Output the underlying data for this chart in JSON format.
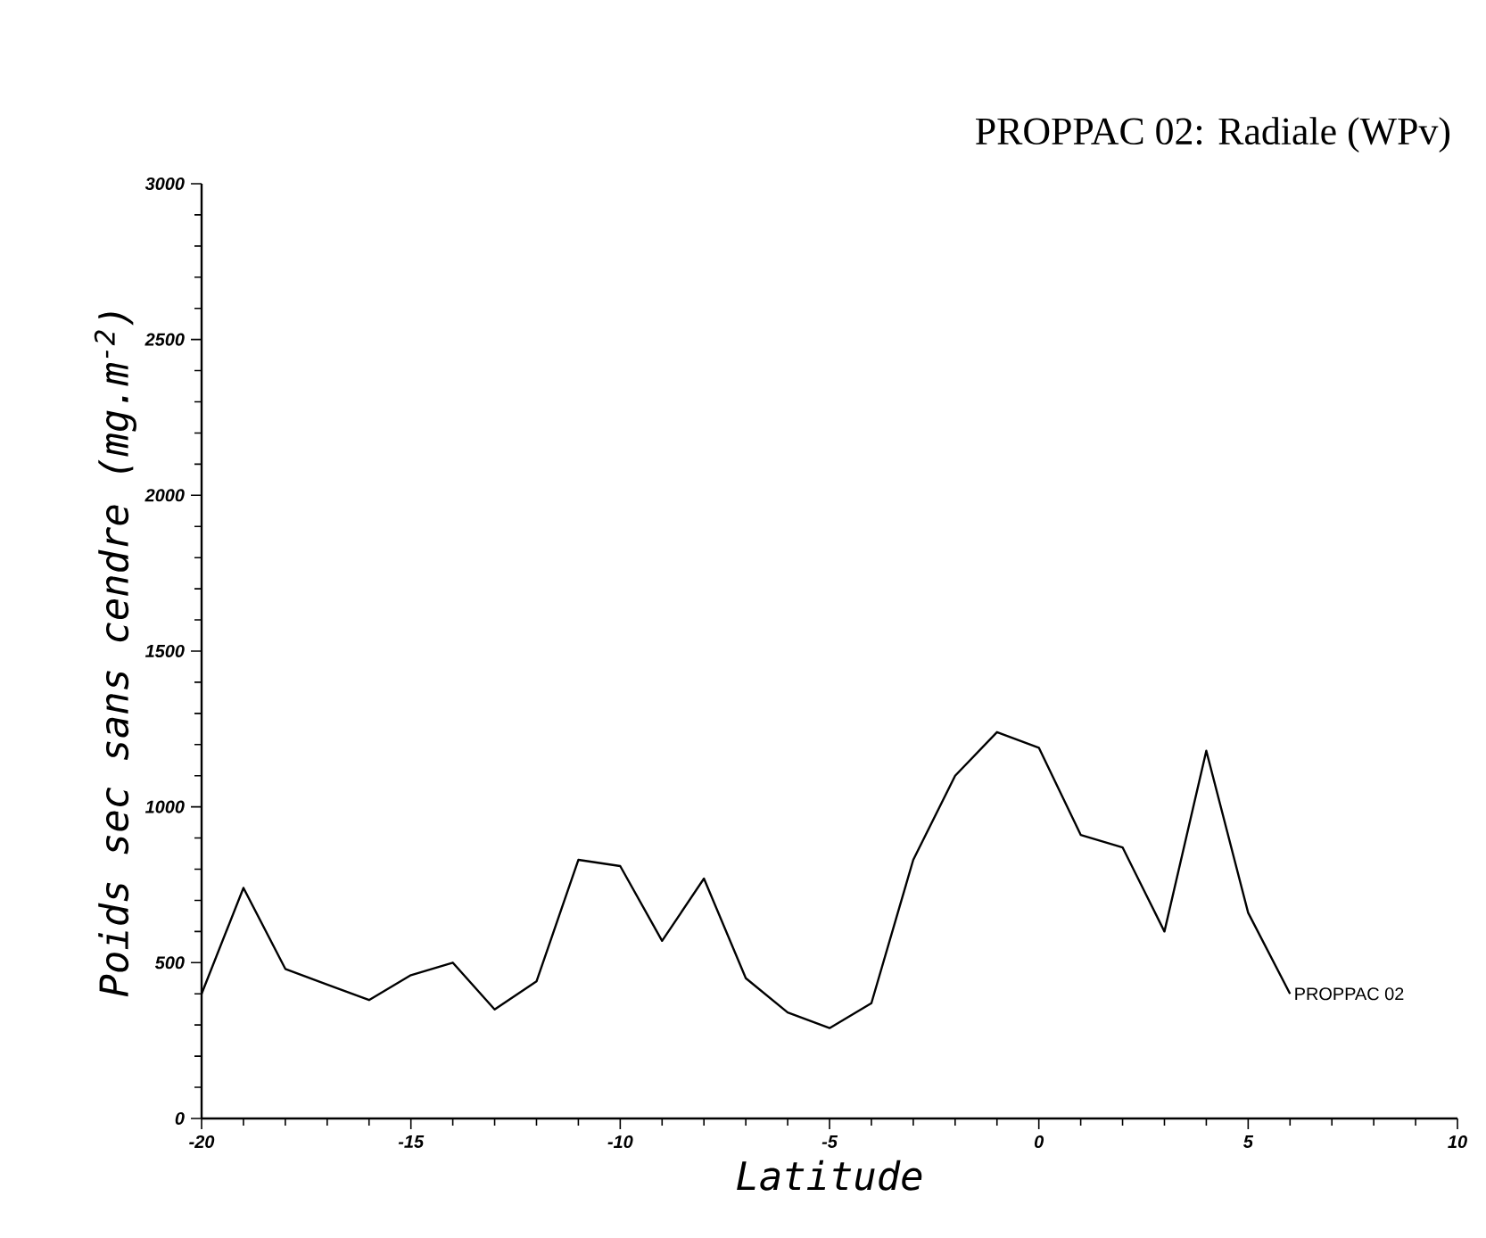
{
  "chart_data": {
    "type": "line",
    "title": "PROPPAC 02: Radiale (WPv)",
    "xlabel": "Latitude",
    "ylabel": "Poids sec sans cendre (mg.m$^{-2}$)",
    "x": [
      -20,
      -19,
      -18,
      -17,
      -16,
      -15,
      -14,
      -13,
      -12,
      -11,
      -10,
      -9,
      -8,
      -7,
      -6,
      -5,
      -4,
      -3,
      -2,
      -1,
      0,
      1,
      2,
      3,
      4,
      5,
      6
    ],
    "series": [
      {
        "name": "PROPPAC 02",
        "color": "#000000",
        "values": [
          400,
          740,
          480,
          430,
          380,
          460,
          500,
          350,
          440,
          830,
          810,
          570,
          770,
          450,
          340,
          290,
          370,
          830,
          1100,
          1240,
          1190,
          910,
          870,
          600,
          1180,
          660,
          400
        ]
      }
    ],
    "xlim": [
      -20,
      10
    ],
    "ylim": [
      0,
      3000
    ],
    "xticks": [
      -20,
      -15,
      -10,
      -5,
      0,
      5,
      10
    ],
    "yticks": [
      0,
      500,
      1000,
      1500,
      2000,
      2500,
      3000
    ],
    "grid": false,
    "legend": false,
    "marker": "none"
  }
}
